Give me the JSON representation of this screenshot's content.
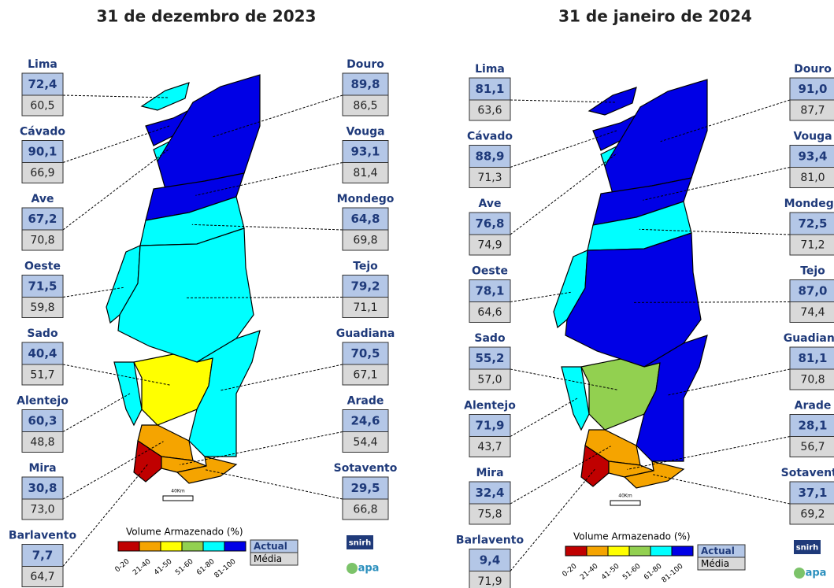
{
  "maps": [
    {
      "title": "31 de dezembro de 2023",
      "basins": [
        {
          "name": "Lima",
          "actual": "72,4",
          "average": "60,5"
        },
        {
          "name": "Cávado",
          "actual": "90,1",
          "average": "66,9"
        },
        {
          "name": "Ave",
          "actual": "67,2",
          "average": "70,8"
        },
        {
          "name": "Oeste",
          "actual": "71,5",
          "average": "59,8"
        },
        {
          "name": "Sado",
          "actual": "40,4",
          "average": "51,7"
        },
        {
          "name": "Alentejo",
          "actual": "60,3",
          "average": "48,8"
        },
        {
          "name": "Mira",
          "actual": "30,8",
          "average": "73,0"
        },
        {
          "name": "Barlavento",
          "actual": "7,7",
          "average": "64,7"
        },
        {
          "name": "Douro",
          "actual": "89,8",
          "average": "86,5"
        },
        {
          "name": "Vouga",
          "actual": "93,1",
          "average": "81,4"
        },
        {
          "name": "Mondego",
          "actual": "64,8",
          "average": "69,8"
        },
        {
          "name": "Tejo",
          "actual": "79,2",
          "average": "71,1"
        },
        {
          "name": "Guadiana",
          "actual": "70,5",
          "average": "67,1"
        },
        {
          "name": "Arade",
          "actual": "24,6",
          "average": "54,4"
        },
        {
          "name": "Sotavento",
          "actual": "29,5",
          "average": "66,8"
        }
      ]
    },
    {
      "title": "31 de janeiro de 2024",
      "basins": [
        {
          "name": "Lima",
          "actual": "81,1",
          "average": "63,6"
        },
        {
          "name": "Cávado",
          "actual": "88,9",
          "average": "71,3"
        },
        {
          "name": "Ave",
          "actual": "76,8",
          "average": "74,9"
        },
        {
          "name": "Oeste",
          "actual": "78,1",
          "average": "64,6"
        },
        {
          "name": "Sado",
          "actual": "55,2",
          "average": "57,0"
        },
        {
          "name": "Alentejo",
          "actual": "71,9",
          "average": "43,7"
        },
        {
          "name": "Mira",
          "actual": "32,4",
          "average": "75,8"
        },
        {
          "name": "Barlavento",
          "actual": "9,4",
          "average": "71,9"
        },
        {
          "name": "Douro",
          "actual": "91,0",
          "average": "87,7"
        },
        {
          "name": "Vouga",
          "actual": "93,4",
          "average": "81,0"
        },
        {
          "name": "Mondego",
          "actual": "72,5",
          "average": "71,2"
        },
        {
          "name": "Tejo",
          "actual": "87,0",
          "average": "74,4"
        },
        {
          "name": "Guadiana",
          "actual": "81,1",
          "average": "70,8"
        },
        {
          "name": "Arade",
          "actual": "28,1",
          "average": "56,7"
        },
        {
          "name": "Sotavento",
          "actual": "37,1",
          "average": "69,2"
        }
      ]
    }
  ],
  "legend": {
    "title": "Volume Armazenado (%)",
    "classes": [
      "0-20",
      "21-40",
      "41-50",
      "51-60",
      "61-80",
      "81-100"
    ],
    "colors": [
      "#c00000",
      "#f5a400",
      "#ffff00",
      "#92d050",
      "#00ffff",
      "#0000e6"
    ]
  },
  "key": {
    "actual": "Actual",
    "average": "Média"
  },
  "scale": "40Km",
  "logos": [
    "snirh",
    "apa"
  ]
}
